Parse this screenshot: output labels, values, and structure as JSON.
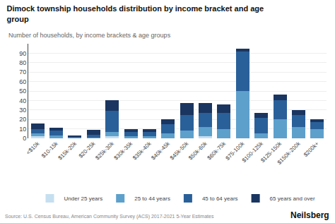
{
  "chart_data": {
    "type": "bar",
    "title": "Dimock township households distribution by income bracket and age\ngroup",
    "subtitle": "Number of households, by income brackets & age groups",
    "source": "Source: U.S. Census Bureau, American Community Survey (ACS) 2017-2021 5-Year Estimates",
    "branding": "Neilsberg",
    "categories": [
      "<$10k",
      "$10-15k",
      "$15k-20k",
      "$20-25k",
      "$25k-30k",
      "$30k-35k",
      "$35k-40k",
      "$40k-45k",
      "$45k-50k",
      "$50k-60k",
      "$60k-75k",
      "$75-100k",
      "$100-125k",
      "$125-150k",
      "$150k-200k",
      "$200k+"
    ],
    "series": [
      {
        "name": "Under 25 years",
        "color": "#c6dff0",
        "values": [
          2,
          0,
          0,
          0,
          2,
          0,
          0,
          0,
          0,
          2,
          0,
          0,
          0,
          0,
          0,
          0
        ]
      },
      {
        "name": "25 to 44 years",
        "color": "#5da0cc",
        "values": [
          3,
          3,
          1,
          1,
          5,
          2,
          2,
          5,
          8,
          10,
          10,
          50,
          5,
          20,
          12,
          10
        ]
      },
      {
        "name": "45 to 64 years",
        "color": "#2a6099",
        "values": [
          5,
          5,
          1,
          3,
          22,
          5,
          5,
          10,
          17,
          15,
          17,
          42,
          17,
          20,
          13,
          7
        ]
      },
      {
        "name": "65 years and over",
        "color": "#1a3560",
        "values": [
          6,
          3,
          1,
          5,
          11,
          3,
          3,
          5,
          12,
          10,
          9,
          3,
          5,
          6,
          5,
          3
        ]
      }
    ],
    "stacked": true,
    "ylim": [
      0,
      100
    ],
    "yticks": [
      0,
      10,
      20,
      30,
      40,
      50,
      60,
      70,
      80,
      90
    ],
    "grid": true,
    "legend": "bottom"
  }
}
